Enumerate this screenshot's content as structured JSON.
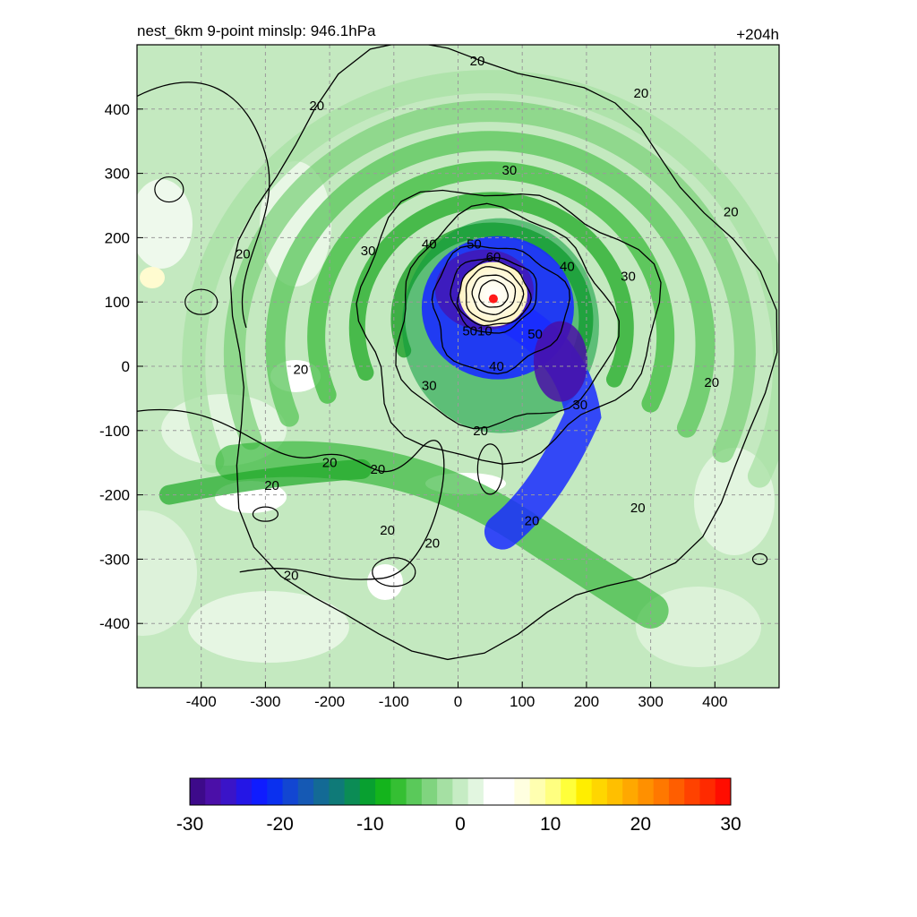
{
  "chart_data": {
    "type": "heatmap",
    "title_left": "nest_6km  9-point minslp: 946.1hPa",
    "title_right": "+204h",
    "xlim": [
      -500,
      500
    ],
    "ylim": [
      -500,
      500
    ],
    "xticks": [
      -400,
      -300,
      -200,
      -100,
      0,
      100,
      200,
      300,
      400
    ],
    "yticks": [
      -400,
      -300,
      -200,
      -100,
      0,
      100,
      200,
      300,
      400
    ],
    "grid": true,
    "storm_center": {
      "x": 55,
      "y": 105,
      "color": "#ff1a1a"
    },
    "contour_levels": [
      20,
      30,
      40,
      50,
      60
    ],
    "contour_labels": [
      {
        "x": 30,
        "y": 475,
        "text": "20"
      },
      {
        "x": 285,
        "y": 425,
        "text": "20"
      },
      {
        "x": -220,
        "y": 405,
        "text": "20"
      },
      {
        "x": -335,
        "y": 175,
        "text": "20"
      },
      {
        "x": 425,
        "y": 240,
        "text": "20"
      },
      {
        "x": 395,
        "y": -25,
        "text": "20"
      },
      {
        "x": -245,
        "y": -5,
        "text": "20"
      },
      {
        "x": -200,
        "y": -150,
        "text": "20"
      },
      {
        "x": -125,
        "y": -160,
        "text": "20"
      },
      {
        "x": -290,
        "y": -185,
        "text": "20"
      },
      {
        "x": 35,
        "y": -100,
        "text": "20"
      },
      {
        "x": -110,
        "y": -255,
        "text": "20"
      },
      {
        "x": -40,
        "y": -275,
        "text": "20"
      },
      {
        "x": 115,
        "y": -240,
        "text": "20"
      },
      {
        "x": 280,
        "y": -220,
        "text": "20"
      },
      {
        "x": -260,
        "y": -325,
        "text": "20"
      },
      {
        "x": 80,
        "y": 305,
        "text": "30"
      },
      {
        "x": -140,
        "y": 180,
        "text": "30"
      },
      {
        "x": 265,
        "y": 140,
        "text": "30"
      },
      {
        "x": -45,
        "y": -30,
        "text": "30"
      },
      {
        "x": 190,
        "y": -60,
        "text": "30"
      },
      {
        "x": -45,
        "y": 190,
        "text": "40"
      },
      {
        "x": 170,
        "y": 155,
        "text": "40"
      },
      {
        "x": 60,
        "y": 0,
        "text": "40"
      },
      {
        "x": 25,
        "y": 190,
        "text": "50"
      },
      {
        "x": 120,
        "y": 50,
        "text": "50"
      },
      {
        "x": 55,
        "y": 170,
        "text": "60"
      },
      {
        "x": 30,
        "y": 55,
        "text": "5010"
      }
    ],
    "colorbar": {
      "vmin": -30,
      "vmax": 30,
      "ticks": [
        -30,
        -20,
        -10,
        0,
        10,
        20,
        30
      ],
      "colors": [
        "#3d0a8a",
        "#4b0fa8",
        "#3a14c8",
        "#2416e6",
        "#0f1cff",
        "#0a30ef",
        "#1246d2",
        "#1559b4",
        "#136a95",
        "#0f7a78",
        "#0b8c55",
        "#08a030",
        "#14b41c",
        "#35bf33",
        "#5ac95a",
        "#80d47f",
        "#a5e0a3",
        "#c6ecc4",
        "#e2f6e0",
        "#ffffff",
        "#ffffff",
        "#ffffe0",
        "#ffffb0",
        "#ffff80",
        "#ffff3a",
        "#ffee00",
        "#ffd600",
        "#ffbf00",
        "#ffa800",
        "#ff9000",
        "#ff7800",
        "#ff5e00",
        "#ff4200",
        "#ff2a00",
        "#ff0d00"
      ]
    }
  }
}
